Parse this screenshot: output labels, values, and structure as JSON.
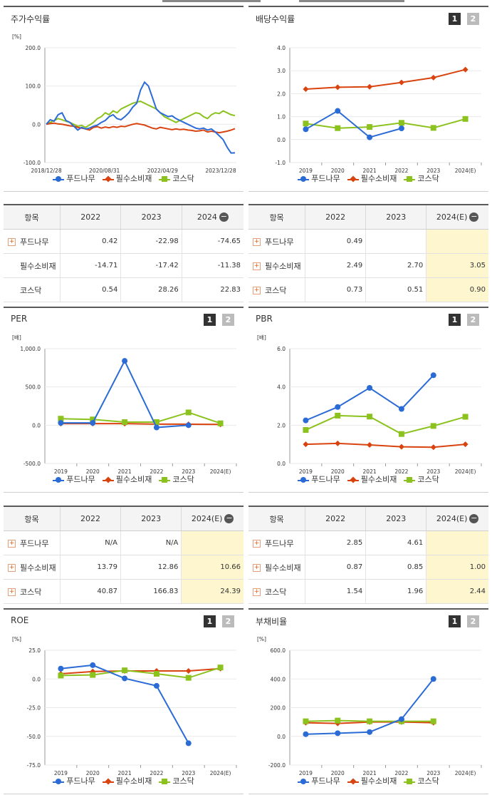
{
  "colors": {
    "s1": "#2b6bd6",
    "s2": "#d9430f",
    "s3": "#8cc21e"
  },
  "legend": [
    "푸드나무",
    "필수소비재",
    "코스닥"
  ],
  "panels": {
    "p1": {
      "title": "주가수익률",
      "unit": "[%]",
      "btn1": "",
      "btn2": ""
    },
    "p2": {
      "title": "배당수익률",
      "unit": "",
      "btn1": "1",
      "btn2": "2"
    },
    "p3": {
      "title": "PER",
      "unit": "[배]",
      "btn1": "1",
      "btn2": "2"
    },
    "p4": {
      "title": "PBR",
      "unit": "[배]",
      "btn1": "1",
      "btn2": "2"
    },
    "p5": {
      "title": "ROE",
      "unit": "[%]",
      "btn1": "1",
      "btn2": "2"
    },
    "p6": {
      "title": "부채비율",
      "unit": "[%]",
      "btn1": "1",
      "btn2": "2"
    }
  },
  "tables": {
    "t1": {
      "header": [
        "항목",
        "2022",
        "2023",
        "2024"
      ],
      "minus": "−",
      "rows": [
        {
          "name": "푸드나무",
          "plus": true,
          "vals": [
            "0.42",
            "-22.98",
            "-74.65"
          ]
        },
        {
          "name": "필수소비재",
          "plus": false,
          "vals": [
            "-14.71",
            "-17.42",
            "-11.38"
          ]
        },
        {
          "name": "코스닥",
          "plus": false,
          "vals": [
            "0.54",
            "28.26",
            "22.83"
          ]
        }
      ]
    },
    "t2": {
      "header": [
        "항목",
        "2022",
        "2023",
        "2024(E)"
      ],
      "minus": "−",
      "rows": [
        {
          "name": "푸드나무",
          "plus": true,
          "vals": [
            "0.49",
            "",
            ""
          ]
        },
        {
          "name": "필수소비재",
          "plus": true,
          "vals": [
            "2.49",
            "2.70",
            "3.05"
          ]
        },
        {
          "name": "코스닥",
          "plus": true,
          "vals": [
            "0.73",
            "0.51",
            "0.90"
          ]
        }
      ]
    },
    "t3": {
      "header": [
        "항목",
        "2022",
        "2023",
        "2024(E)"
      ],
      "minus": "−",
      "rows": [
        {
          "name": "푸드나무",
          "plus": true,
          "vals": [
            "N/A",
            "N/A",
            ""
          ]
        },
        {
          "name": "필수소비재",
          "plus": true,
          "vals": [
            "13.79",
            "12.86",
            "10.66"
          ]
        },
        {
          "name": "코스닥",
          "plus": true,
          "vals": [
            "40.87",
            "166.83",
            "24.39"
          ]
        }
      ]
    },
    "t4": {
      "header": [
        "항목",
        "2022",
        "2023",
        "2024(E)"
      ],
      "minus": "−",
      "rows": [
        {
          "name": "푸드나무",
          "plus": true,
          "vals": [
            "2.85",
            "4.61",
            ""
          ]
        },
        {
          "name": "필수소비재",
          "plus": true,
          "vals": [
            "0.87",
            "0.85",
            "1.00"
          ]
        },
        {
          "name": "코스닥",
          "plus": true,
          "vals": [
            "1.54",
            "1.96",
            "2.44"
          ]
        }
      ]
    }
  },
  "chart_data": [
    {
      "type": "line",
      "title": "주가수익률",
      "ylabel": "[%]",
      "ylim": [
        -100,
        200
      ],
      "yticks": [
        "200.0",
        "100.0",
        "0.0",
        "-100.0"
      ],
      "xticks": [
        "2018/12/28",
        "2020/08/31",
        "2022/04/29",
        "2023/12/28"
      ],
      "series": [
        {
          "name": "푸드나무",
          "values": [
            0,
            12,
            8,
            25,
            30,
            10,
            5,
            -5,
            -15,
            -8,
            -12,
            -10,
            -5,
            -2,
            5,
            10,
            20,
            25,
            15,
            12,
            20,
            30,
            45,
            55,
            90,
            110,
            100,
            70,
            40,
            30,
            25,
            20,
            22,
            15,
            10,
            5,
            0,
            -5,
            -10,
            -12,
            -10,
            -15,
            -12,
            -20,
            -30,
            -40,
            -60,
            -75,
            -74.65
          ]
        },
        {
          "name": "필수소비재",
          "values": [
            0,
            2,
            3,
            1,
            0,
            -2,
            -4,
            -5,
            -8,
            -10,
            -12,
            -15,
            -8,
            -6,
            -10,
            -7,
            -9,
            -6,
            -8,
            -5,
            -6,
            -3,
            0,
            2,
            0,
            -2,
            -6,
            -10,
            -12,
            -8,
            -10,
            -12,
            -14,
            -12,
            -14,
            -13,
            -15,
            -16,
            -18,
            -17,
            -15,
            -20,
            -18,
            -20,
            -22,
            -20,
            -18,
            -15,
            -11.38
          ]
        },
        {
          "name": "코스닥",
          "values": [
            0,
            5,
            10,
            15,
            12,
            8,
            5,
            0,
            -5,
            -3,
            -8,
            -2,
            5,
            15,
            20,
            30,
            25,
            35,
            30,
            40,
            45,
            50,
            55,
            58,
            60,
            55,
            50,
            45,
            40,
            30,
            20,
            15,
            10,
            5,
            10,
            15,
            20,
            25,
            30,
            28,
            20,
            15,
            25,
            30,
            28,
            35,
            30,
            25,
            22.83
          ]
        }
      ]
    },
    {
      "type": "line",
      "title": "배당수익률",
      "ylim": [
        -1,
        4
      ],
      "yticks": [
        "4.0",
        "3.0",
        "2.0",
        "1.0",
        "0.0",
        "-1.0"
      ],
      "categories": [
        "2019",
        "2020",
        "2021",
        "2022",
        "2023",
        "2024(E)"
      ],
      "series": [
        {
          "name": "푸드나무",
          "values": [
            0.45,
            1.25,
            0.1,
            0.49,
            null,
            null
          ]
        },
        {
          "name": "필수소비재",
          "values": [
            2.2,
            2.28,
            2.3,
            2.49,
            2.7,
            3.05
          ]
        },
        {
          "name": "코스닥",
          "values": [
            0.7,
            0.5,
            0.55,
            0.73,
            0.51,
            0.9
          ]
        }
      ]
    },
    {
      "type": "line",
      "title": "PER",
      "ylabel": "[배]",
      "ylim": [
        -500,
        1000
      ],
      "yticks": [
        "1,000.0",
        "500.0",
        "0.0",
        "-500.0"
      ],
      "categories": [
        "2019",
        "2020",
        "2021",
        "2022",
        "2023",
        "2024(E)"
      ],
      "series": [
        {
          "name": "푸드나무",
          "values": [
            30,
            30,
            840,
            -30,
            0,
            null
          ]
        },
        {
          "name": "필수소비재",
          "values": [
            20,
            20,
            20,
            13.79,
            12.86,
            10.66
          ]
        },
        {
          "name": "코스닥",
          "values": [
            85,
            75,
            40,
            40.87,
            166.83,
            24.39
          ]
        }
      ]
    },
    {
      "type": "line",
      "title": "PBR",
      "ylabel": "[배]",
      "ylim": [
        0,
        6
      ],
      "yticks": [
        "6.0",
        "4.0",
        "2.0",
        "0.0"
      ],
      "categories": [
        "2019",
        "2020",
        "2021",
        "2022",
        "2023",
        "2024(E)"
      ],
      "series": [
        {
          "name": "푸드나무",
          "values": [
            2.25,
            2.95,
            3.95,
            2.85,
            4.61,
            null
          ]
        },
        {
          "name": "필수소비재",
          "values": [
            1.0,
            1.05,
            0.97,
            0.87,
            0.85,
            1.0
          ]
        },
        {
          "name": "코스닥",
          "values": [
            1.75,
            2.5,
            2.45,
            1.54,
            1.96,
            2.44
          ]
        }
      ]
    },
    {
      "type": "line",
      "title": "ROE",
      "ylabel": "[%]",
      "ylim": [
        -75,
        25
      ],
      "yticks": [
        "25.0",
        "0.0",
        "-25.0",
        "-50.0",
        "-75.0"
      ],
      "categories": [
        "2019",
        "2020",
        "2021",
        "2022",
        "2023",
        "2024(E)"
      ],
      "series": [
        {
          "name": "푸드나무",
          "values": [
            9,
            12,
            0.5,
            -6,
            -56,
            null
          ]
        },
        {
          "name": "필수소비재",
          "values": [
            4.5,
            6.5,
            7,
            7,
            7,
            9
          ]
        },
        {
          "name": "코스닥",
          "values": [
            3,
            3.5,
            7.5,
            4.5,
            1,
            10
          ]
        }
      ]
    },
    {
      "type": "line",
      "title": "부채비율",
      "ylabel": "[%]",
      "ylim": [
        -200,
        600
      ],
      "yticks": [
        "600.0",
        "400.0",
        "200.0",
        "0.0",
        "-200.0"
      ],
      "categories": [
        "2019",
        "2020",
        "2021",
        "2022",
        "2023",
        "2024(E)"
      ],
      "series": [
        {
          "name": "푸드나무",
          "values": [
            15,
            22,
            30,
            120,
            400,
            null
          ]
        },
        {
          "name": "필수소비재",
          "values": [
            95,
            90,
            100,
            100,
            95,
            null
          ]
        },
        {
          "name": "코스닥",
          "values": [
            105,
            110,
            105,
            105,
            105,
            null
          ]
        }
      ]
    }
  ]
}
